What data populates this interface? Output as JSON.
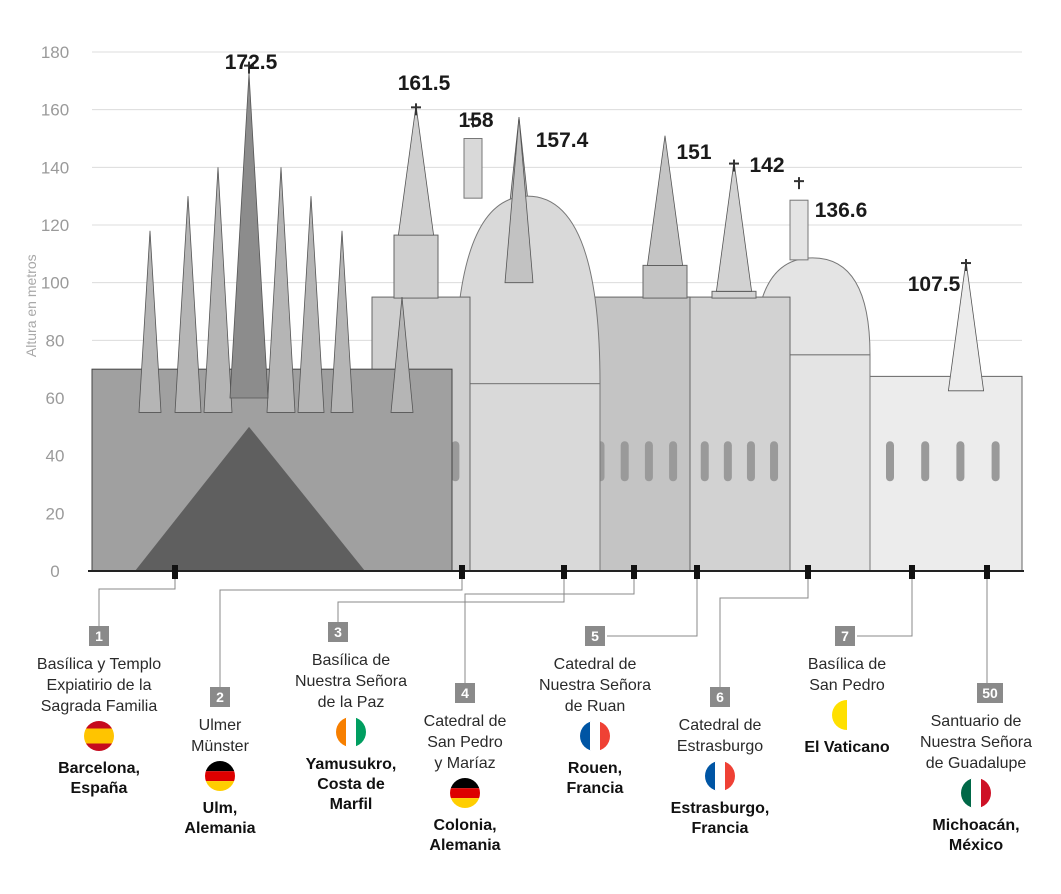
{
  "chart_data": {
    "type": "bar",
    "ylabel": "Altura en metros",
    "ylim": [
      0,
      180
    ],
    "yticks": [
      0,
      20,
      40,
      60,
      80,
      100,
      120,
      140,
      160,
      180
    ],
    "grid": true,
    "value_labels": [
      "172.5",
      "161.5",
      "158",
      "157.4",
      "151",
      "142",
      "136.6",
      "107.5"
    ],
    "categories": [
      {
        "rank": "1",
        "name": [
          "Basílica y Templo",
          "Expiatirio de la",
          "Sagrada Familia"
        ],
        "location": [
          "Barcelona,",
          "España"
        ],
        "height": 172.5
      },
      {
        "rank": "2",
        "name": [
          "Ulmer",
          "Münster"
        ],
        "location": [
          "Ulm,",
          "Alemania"
        ],
        "height": 161.5
      },
      {
        "rank": "3",
        "name": [
          "Basílica de",
          "Nuestra Señora",
          "de la Paz"
        ],
        "location": [
          "Yamusukro,",
          "Costa de",
          "Marfil"
        ],
        "height": 158
      },
      {
        "rank": "4",
        "name": [
          "Catedral de",
          "San Pedro",
          "y Maríaz"
        ],
        "location": [
          "Colonia,",
          "Alemania"
        ],
        "height": 157.4
      },
      {
        "rank": "5",
        "name": [
          "Catedral de",
          "Nuestra Señora",
          "de Ruan"
        ],
        "location": [
          "Rouen,",
          "Francia"
        ],
        "height": 151
      },
      {
        "rank": "6",
        "name": [
          "Catedral de",
          "Estrasburgo"
        ],
        "location": [
          "Estrasburgo,",
          "Francia"
        ],
        "height": 142
      },
      {
        "rank": "7",
        "name": [
          "Basílica de",
          "San Pedro"
        ],
        "location": [
          "El Vaticano"
        ],
        "height": 136.6
      },
      {
        "rank": "50",
        "name": [
          "Santuario de",
          "Nuestra Señora",
          "de Guadalupe"
        ],
        "location": [
          "Michoacán,",
          "México"
        ],
        "height": 107.5
      }
    ],
    "flags": [
      "spain",
      "germany",
      "ivory-coast",
      "germany",
      "france",
      "france",
      "vatican",
      "mexico"
    ]
  }
}
